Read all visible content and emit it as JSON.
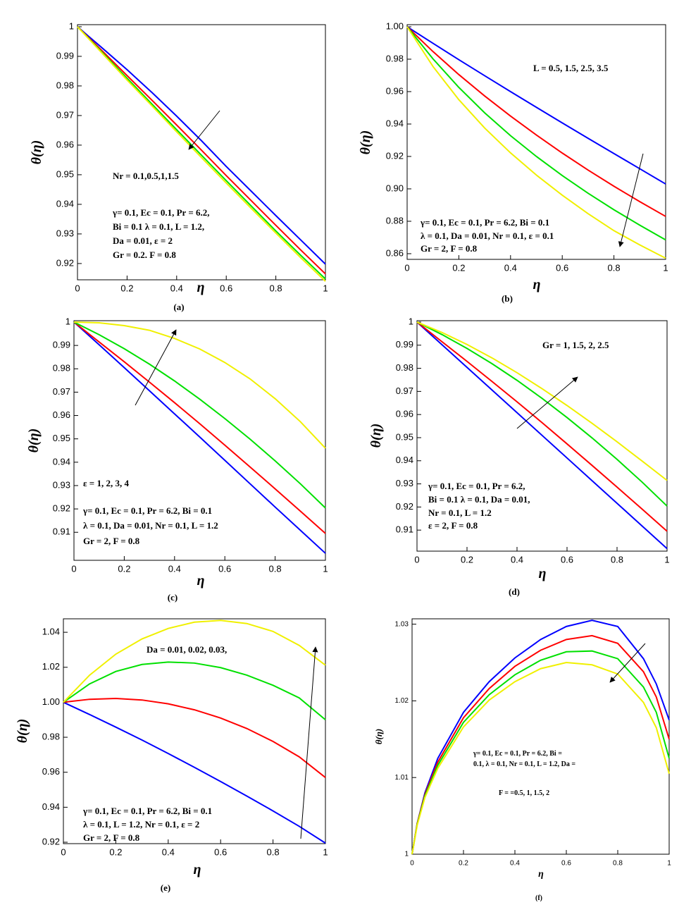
{
  "chart_data": [
    {
      "type": "line",
      "xlabel": "η",
      "ylabel": "θ(η)",
      "caption": "(a)",
      "annotations": [
        "Nr = 0.1,0.5,1,1.5",
        "γ= 0.1, Ec = 0.1, Pr = 6.2,",
        "Bi = 0.1  λ = 0.1, L = 1.2,",
        "Da = 0.01, ε = 2",
        "Gr = 0.2. F = 0.8"
      ],
      "x": [
        0,
        0.1,
        0.2,
        0.3,
        0.4,
        0.5,
        0.6,
        0.7,
        0.8,
        0.9,
        1
      ],
      "series": [
        {
          "color": "#0000ff",
          "values": [
            1,
            0.9928,
            0.9855,
            0.9778,
            0.9698,
            0.9615,
            0.9528,
            0.9445,
            0.9362,
            0.928,
            0.9198
          ]
        },
        {
          "color": "#ff0000",
          "values": [
            1,
            0.9918,
            0.9835,
            0.9752,
            0.9668,
            0.9583,
            0.9497,
            0.9413,
            0.9329,
            0.9246,
            0.9165
          ]
        },
        {
          "color": "#00e000",
          "values": [
            1,
            0.9913,
            0.9826,
            0.9739,
            0.9652,
            0.9566,
            0.948,
            0.9395,
            0.931,
            0.9228,
            0.9148
          ]
        },
        {
          "color": "#f0f000",
          "values": [
            1,
            0.991,
            0.982,
            0.9733,
            0.9645,
            0.9558,
            0.9472,
            0.9387,
            0.9303,
            0.922,
            0.914
          ]
        }
      ],
      "xlim": [
        0,
        1
      ],
      "ylim": [
        0.9145,
        1.0007
      ],
      "xticks": [
        0,
        0.2,
        0.4,
        0.6,
        0.8,
        1
      ],
      "yticks": [
        0.92,
        0.93,
        0.94,
        0.95,
        0.96,
        0.97,
        0.98,
        0.99,
        1
      ]
    },
    {
      "type": "line",
      "xlabel": "η",
      "ylabel": "θ(η)",
      "caption": "(b)",
      "annotations": [
        "L = 0.5, 1.5, 2.5, 3.5",
        "γ= 0.1, Ec = 0.1, Pr = 6.2, Bi = 0.1",
        "λ = 0.1, Da = 0.01, Nr = 0.1, ε = 0.1",
        "Gr = 2, F = 0.8"
      ],
      "x": [
        0,
        0.1,
        0.2,
        0.3,
        0.4,
        0.5,
        0.6,
        0.7,
        0.8,
        0.9,
        1
      ],
      "series": [
        {
          "color": "#0000ff",
          "values": [
            1,
            0.9898,
            0.9797,
            0.9698,
            0.96,
            0.9503,
            0.9407,
            0.9312,
            0.9218,
            0.9124,
            0.903
          ]
        },
        {
          "color": "#ff0000",
          "values": [
            1,
            0.9847,
            0.9705,
            0.9573,
            0.9449,
            0.9332,
            0.9221,
            0.9116,
            0.9016,
            0.8921,
            0.883
          ]
        },
        {
          "color": "#00e000",
          "values": [
            1,
            0.9802,
            0.9626,
            0.9469,
            0.9328,
            0.92,
            0.9082,
            0.8973,
            0.8871,
            0.8776,
            0.8685
          ]
        },
        {
          "color": "#f0f000",
          "values": [
            1,
            0.9755,
            0.955,
            0.9375,
            0.9222,
            0.9085,
            0.8961,
            0.8847,
            0.8742,
            0.8654,
            0.8572
          ]
        }
      ],
      "xlim": [
        0,
        1
      ],
      "ylim": [
        0.8565,
        1.0013
      ],
      "xticks": [
        0,
        0.2,
        0.4,
        0.6,
        0.8,
        1
      ],
      "yticks": [
        {
          "value": 0.86,
          "label": "0.86"
        },
        {
          "value": 0.88,
          "label": "0.88"
        },
        {
          "value": 0.9,
          "label": "0.90"
        },
        0.92,
        0.94,
        0.96,
        0.98,
        {
          "value": 1,
          "label": "1.00"
        }
      ]
    },
    {
      "type": "line",
      "xlabel": "η",
      "ylabel": "θ(η)",
      "caption": "(c)",
      "annotations": [
        "ε = 1, 2, 3, 4",
        "γ= 0.1, Ec = 0.1, Pr = 6.2, Bi = 0.1",
        "λ = 0.1, Da = 0.01, Nr = 0.1, L = 1.2",
        "Gr = 2, F = 0.8"
      ],
      "x": [
        0,
        0.1,
        0.2,
        0.3,
        0.4,
        0.5,
        0.6,
        0.7,
        0.8,
        0.9,
        1
      ],
      "series": [
        {
          "color": "#0000ff",
          "values": [
            1,
            0.9903,
            0.9805,
            0.9706,
            0.9607,
            0.9508,
            0.9408,
            0.9308,
            0.9208,
            0.9109,
            0.901
          ]
        },
        {
          "color": "#ff0000",
          "values": [
            1,
            0.9915,
            0.983,
            0.9743,
            0.9655,
            0.9565,
            0.9473,
            0.938,
            0.9286,
            0.9191,
            0.9095
          ]
        },
        {
          "color": "#00e000",
          "values": [
            1,
            0.9946,
            0.9886,
            0.982,
            0.9748,
            0.967,
            0.9587,
            0.9499,
            0.9406,
            0.9308,
            0.9204
          ]
        },
        {
          "color": "#f0f000",
          "values": [
            1,
            0.9997,
            0.9985,
            0.9965,
            0.993,
            0.9885,
            0.9827,
            0.9757,
            0.9672,
            0.9574,
            0.946
          ]
        }
      ],
      "xlim": [
        0,
        1
      ],
      "ylim": [
        0.898,
        1.0006
      ],
      "xticks": [
        0,
        0.2,
        0.4,
        0.6,
        0.8,
        1
      ],
      "yticks": [
        0.91,
        0.92,
        0.93,
        0.94,
        0.95,
        0.96,
        0.97,
        0.98,
        0.99,
        1
      ]
    },
    {
      "type": "line",
      "xlabel": "η",
      "ylabel": "θ(η)",
      "caption": "(d)",
      "annotations": [
        "Gr = 1, 1.5, 2, 2.5",
        "γ= 0.1, Ec = 0.1, Pr = 6.2,",
        "Bi = 0.1  λ = 0.1, Da = 0.01,",
        "Nr = 0.1, L = 1.2",
        "ε = 2, F = 0.8"
      ],
      "x": [
        0,
        0.1,
        0.2,
        0.3,
        0.4,
        0.5,
        0.6,
        0.7,
        0.8,
        0.9,
        1
      ],
      "series": [
        {
          "color": "#0000ff",
          "values": [
            1,
            0.9902,
            0.9804,
            0.9706,
            0.9608,
            0.951,
            0.9412,
            0.9314,
            0.9216,
            0.9118,
            0.902
          ]
        },
        {
          "color": "#ff0000",
          "values": [
            1,
            0.9915,
            0.983,
            0.9743,
            0.9655,
            0.9565,
            0.9473,
            0.938,
            0.9286,
            0.9191,
            0.9095
          ]
        },
        {
          "color": "#00e000",
          "values": [
            1,
            0.9946,
            0.9886,
            0.982,
            0.9748,
            0.967,
            0.9587,
            0.9499,
            0.9406,
            0.9308,
            0.9204
          ]
        },
        {
          "color": "#f0f000",
          "values": [
            1,
            0.9955,
            0.9903,
            0.9845,
            0.9781,
            0.9712,
            0.9639,
            0.9562,
            0.9482,
            0.9399,
            0.9315
          ]
        }
      ],
      "xlim": [
        0,
        1
      ],
      "ylim": [
        0.9009,
        1.0006
      ],
      "xticks": [
        0,
        0.2,
        0.4,
        0.6,
        0.8,
        1
      ],
      "yticks": [
        0.91,
        0.92,
        0.93,
        0.94,
        0.95,
        0.96,
        0.97,
        0.98,
        0.99,
        1
      ]
    },
    {
      "type": "line",
      "xlabel": "η",
      "ylabel": "θ(η)",
      "caption": "(e)",
      "annotations": [
        "Da = 0.01, 0.02, 0.03,",
        "γ= 0.1, Ec = 0.1, Pr = 6.2, Bi = 0.1",
        "λ = 0.1, L = 1.2, Nr = 0.1, ε = 2",
        "Gr = 2, F = 0.8"
      ],
      "x": [
        0,
        0.1,
        0.2,
        0.3,
        0.4,
        0.5,
        0.6,
        0.7,
        0.8,
        0.9,
        1
      ],
      "series": [
        {
          "color": "#0000ff",
          "values": [
            1,
            0.993,
            0.9858,
            0.9784,
            0.9707,
            0.9628,
            0.9547,
            0.9464,
            0.9379,
            0.9291,
            0.9195
          ]
        },
        {
          "color": "#ff0000",
          "values": [
            1,
            1.0017,
            1.0022,
            1.0013,
            0.9991,
            0.9957,
            0.991,
            0.985,
            0.9776,
            0.9688,
            0.957
          ]
        },
        {
          "color": "#00e000",
          "values": [
            1,
            1.0105,
            1.0176,
            1.0216,
            1.023,
            1.0224,
            1.0198,
            1.0155,
            1.0097,
            1.0025,
            0.99
          ]
        },
        {
          "color": "#f0f000",
          "values": [
            1,
            1.0155,
            1.0275,
            1.0362,
            1.0422,
            1.0458,
            1.0468,
            1.045,
            1.0405,
            1.0325,
            1.0212
          ]
        }
      ],
      "xlim": [
        0,
        1
      ],
      "ylim": [
        0.9192,
        1.0477
      ],
      "xticks": [
        0,
        0.2,
        0.4,
        0.6,
        0.8,
        1
      ],
      "yticks": [
        0.92,
        0.94,
        0.96,
        0.98,
        {
          "value": 1,
          "label": "1.00"
        },
        1.02,
        1.04
      ]
    },
    {
      "type": "line",
      "xlabel": "η",
      "ylabel": "θ(η)",
      "caption": "(f)",
      "annotations": [
        "γ= 0.1, Ec = 0.1, Pr = 6.2, Bi =",
        "0.1, λ = 0.1, Nr = 0.1, L = 1.2, Da =",
        "F = =0.5, 1, 1.5, 2"
      ],
      "x": [
        0,
        0.02,
        0.05,
        0.1,
        0.2,
        0.3,
        0.4,
        0.5,
        0.6,
        0.7,
        0.8,
        0.9,
        0.95,
        1
      ],
      "series": [
        {
          "color": "#0000ff",
          "values": [
            1,
            1.004,
            1.008,
            1.0125,
            1.0185,
            1.0225,
            1.0256,
            1.028,
            1.0297,
            1.0305,
            1.0297,
            1.0255,
            1.0222,
            1.0175
          ]
        },
        {
          "color": "#ff0000",
          "values": [
            1,
            1.004,
            1.0078,
            1.012,
            1.0178,
            1.0216,
            1.0245,
            1.0266,
            1.028,
            1.0285,
            1.0275,
            1.0238,
            1.0205,
            1.015
          ]
        },
        {
          "color": "#00e000",
          "values": [
            1,
            1.0039,
            1.0076,
            1.0116,
            1.0172,
            1.0208,
            1.0234,
            1.0253,
            1.0264,
            1.0265,
            1.0255,
            1.0218,
            1.0185,
            1.0125
          ]
        },
        {
          "color": "#f0f000",
          "values": [
            1,
            1.0038,
            1.0074,
            1.0112,
            1.0166,
            1.0201,
            1.0225,
            1.0242,
            1.025,
            1.0247,
            1.0235,
            1.0198,
            1.0165,
            1.0105
          ]
        }
      ],
      "xlim": [
        0,
        1
      ],
      "ylim": [
        1,
        1.0307
      ],
      "xticks": [
        0,
        0.2,
        0.4,
        0.6,
        0.8,
        1
      ],
      "yticks": [
        1,
        1.01,
        1.02,
        1.03
      ]
    }
  ]
}
